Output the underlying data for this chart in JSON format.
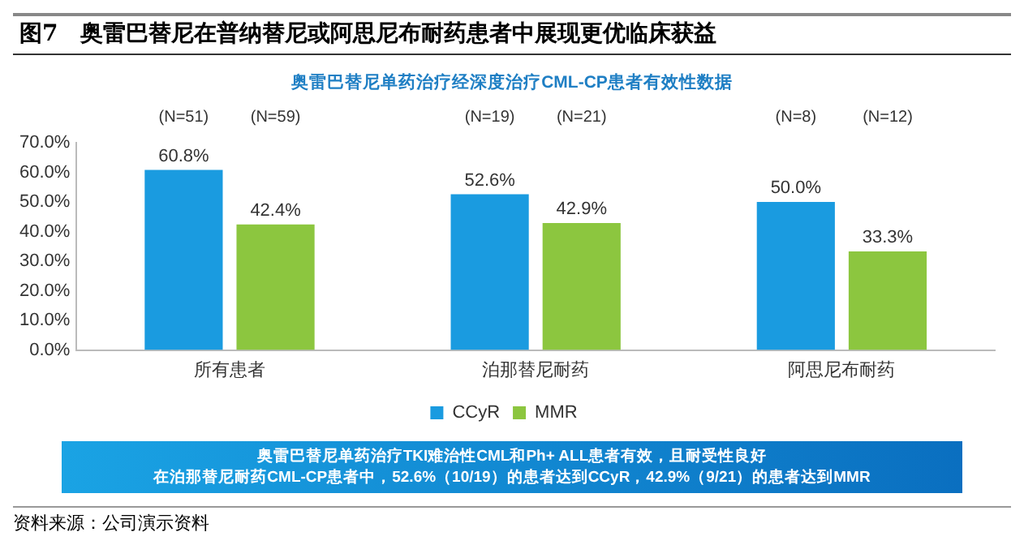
{
  "chart_data": {
    "type": "bar",
    "title": "图7　奥雷巴替尼在普纳替尼或阿思尼布耐药患者中展现更优临床获益",
    "subtitle": "奥雷巴替尼单药治疗经深度治疗CML-CP患者有效性数据",
    "categories": [
      "所有患者",
      "泊那替尼耐药",
      "阿思尼布耐药"
    ],
    "series": [
      {
        "name": "CCyR",
        "color": "#1a9be0",
        "values": [
          60.8,
          52.6,
          50.0
        ],
        "value_labels": [
          "60.8%",
          "52.6%",
          "50.0%"
        ]
      },
      {
        "name": "MMR",
        "color": "#8cc63f",
        "values": [
          42.4,
          42.9,
          33.3
        ],
        "value_labels": [
          "42.4%",
          "42.9%",
          "33.3%"
        ]
      }
    ],
    "ylim": [
      0,
      70
    ],
    "yticks": [
      {
        "value": 0,
        "label": "0.0%"
      },
      {
        "value": 10,
        "label": "10.0%"
      },
      {
        "value": 20,
        "label": "20.0%"
      },
      {
        "value": 30,
        "label": "30.0%"
      },
      {
        "value": 40,
        "label": "40.0%"
      },
      {
        "value": 50,
        "label": "50.0%"
      },
      {
        "value": 60,
        "label": "60.0%"
      },
      {
        "value": 70,
        "label": "70.0%"
      }
    ],
    "grid": false,
    "legend": "bottom",
    "annotations": [
      "(N=51)",
      "(N=59)",
      "(N=19)",
      "(N=21)",
      "(N=8)",
      "(N=12)",
      "奥雷巴替尼单药治疗TKI难治性CML和Ph+ ALL患者有效，且耐受性良好",
      "在泊那替尼耐药CML-CP患者中，52.6%（10/19）的患者达到CCyR，42.9%（9/21）的患者达到MMR",
      "资料来源：公司演示资料"
    ]
  }
}
